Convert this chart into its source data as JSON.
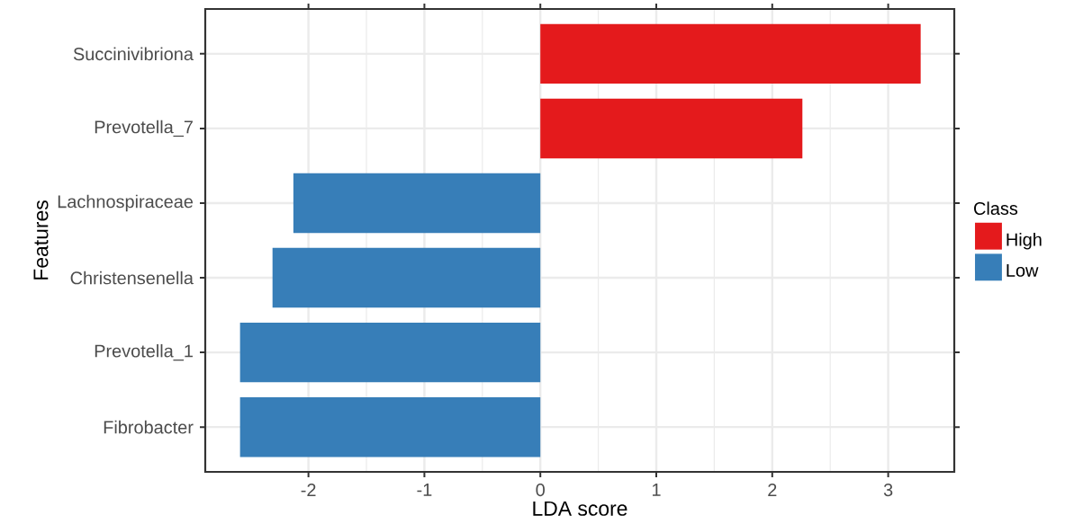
{
  "chart_data": {
    "type": "bar",
    "orientation": "horizontal",
    "xlabel": "LDA score",
    "ylabel": "Features",
    "legend_title": "Class",
    "categories": [
      "Succinivibriona",
      "Prevotella_7",
      "Lachnospiraceae",
      "Christensenella",
      "Prevotella_1",
      "Fibrobacter"
    ],
    "series": [
      {
        "name": "High",
        "color": "#e41a1c",
        "values": [
          3.28,
          2.26,
          null,
          null,
          null,
          null
        ]
      },
      {
        "name": "Low",
        "color": "#377eb8",
        "values": [
          null,
          null,
          -2.13,
          -2.31,
          -2.59,
          -2.59
        ]
      }
    ],
    "xlim": [
      -2.89,
      3.57
    ],
    "xticks": [
      -2,
      -1,
      0,
      1,
      2,
      3
    ],
    "grid": true,
    "legend": "right"
  }
}
